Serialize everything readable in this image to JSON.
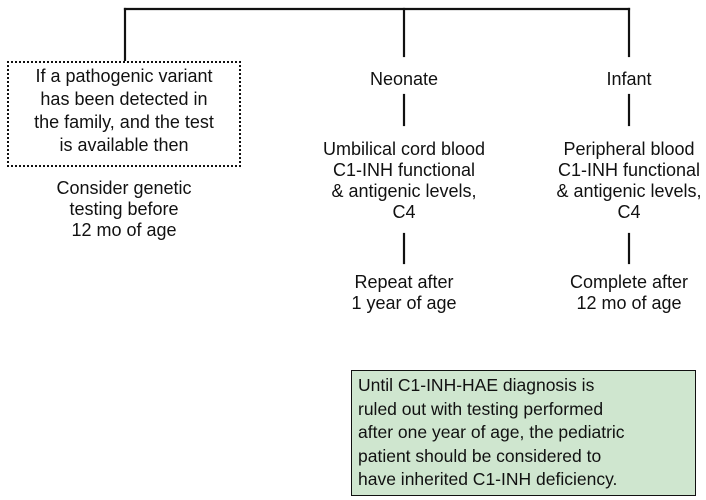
{
  "genetic": {
    "condition": "If a pathogenic variant\nhas been detected in\nthe family, and the test\nis available then",
    "action": "Consider genetic\ntesting before\n12 mo of age"
  },
  "neonate": {
    "label": "Neonate",
    "test": "Umbilical cord blood\nC1-INH functional\n& antigenic levels,\nC4",
    "followup": "Repeat after\n1 year of age"
  },
  "infant": {
    "label": "Infant",
    "test": "Peripheral blood\nC1-INH functional\n& antigenic levels,\nC4",
    "followup": "Complete after\n12 mo of age"
  },
  "note": "Until C1-INH-HAE diagnosis is\nruled out with testing performed\nafter one year of age, the pediatric\npatient should be considered to\nhave inherited C1-INH deficiency."
}
